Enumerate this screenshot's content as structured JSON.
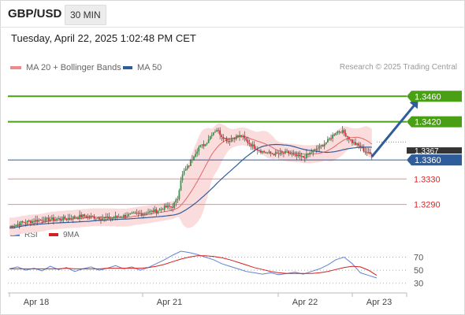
{
  "header": {
    "pair": "GBP/USD",
    "timeframe": "30 MIN",
    "datetime": "Tuesday, April 22, 2025 1:02:48 PM CET"
  },
  "legend": {
    "ma20": "MA 20 + Bollinger Bands",
    "ma50": "MA 50",
    "credit": "Research © 2025 Trading Central",
    "rsi": "RSI",
    "rsi_ma": "9MA"
  },
  "colors": {
    "up_candle": "#2e9a42",
    "down_candle": "#d9272a",
    "bollinger_fill": "#fbdcdc",
    "ma20": "#e06868",
    "ma50": "#2f5d9c",
    "resistance": "#4aa014",
    "support": "#f08a8a",
    "arrow": "#2f5d9c",
    "rsi": "#5f82d6",
    "rsi_ma": "#d42020"
  },
  "chart_data": [
    {
      "type": "candlestick",
      "title": "GBP/USD 30 MIN",
      "x_ticks": [
        "Apr 18",
        "Apr 21",
        "Apr 22",
        "Apr 23"
      ],
      "ylim": [
        1.324,
        1.35
      ],
      "levels": [
        {
          "label": "1.3460",
          "value": 1.346,
          "kind": "resistance"
        },
        {
          "label": "1.3420",
          "value": 1.342,
          "kind": "resistance"
        },
        {
          "label": "1.3360",
          "value": 1.336,
          "kind": "current"
        },
        {
          "label": "1.3330",
          "value": 1.333,
          "kind": "support"
        },
        {
          "label": "1.3290",
          "value": 1.329,
          "kind": "support"
        }
      ],
      "hidden_label_fragment": "1.3367",
      "close_path": [
        [
          0,
          1.3255
        ],
        [
          8,
          1.3262
        ],
        [
          20,
          1.3266
        ],
        [
          35,
          1.3268
        ],
        [
          45,
          1.3272
        ],
        [
          52,
          1.327
        ],
        [
          60,
          1.3268
        ],
        [
          70,
          1.3272
        ],
        [
          80,
          1.3276
        ],
        [
          90,
          1.328
        ],
        [
          95,
          1.3285
        ],
        [
          100,
          1.3287
        ],
        [
          103,
          1.33
        ],
        [
          105,
          1.333
        ],
        [
          107,
          1.3342
        ],
        [
          110,
          1.3352
        ],
        [
          113,
          1.3368
        ],
        [
          116,
          1.338
        ],
        [
          120,
          1.3385
        ],
        [
          124,
          1.3402
        ],
        [
          127,
          1.3408
        ],
        [
          130,
          1.3398
        ],
        [
          134,
          1.339
        ],
        [
          138,
          1.3396
        ],
        [
          142,
          1.3398
        ],
        [
          146,
          1.3388
        ],
        [
          150,
          1.338
        ],
        [
          155,
          1.3373
        ],
        [
          160,
          1.337
        ],
        [
          165,
          1.3369
        ],
        [
          170,
          1.3372
        ],
        [
          175,
          1.3366
        ],
        [
          180,
          1.3364
        ],
        [
          185,
          1.3372
        ],
        [
          190,
          1.338
        ],
        [
          195,
          1.339
        ],
        [
          200,
          1.3404
        ],
        [
          203,
          1.3406
        ],
        [
          206,
          1.34
        ],
        [
          210,
          1.3388
        ],
        [
          214,
          1.3382
        ],
        [
          218,
          1.3373
        ],
        [
          222,
          1.3367
        ]
      ],
      "arrow": {
        "from": [
          222,
          1.3365
        ],
        "to": [
          236,
          1.346
        ]
      },
      "series": [
        {
          "name": "MA 20 + Bollinger Bands"
        },
        {
          "name": "MA 50"
        }
      ]
    },
    {
      "type": "line",
      "title": "RSI",
      "yticks": [
        70,
        50,
        30
      ],
      "ylim": [
        20,
        85
      ],
      "series": [
        {
          "name": "RSI",
          "values": [
            52,
            55,
            50,
            53,
            49,
            56,
            51,
            54,
            48,
            52,
            55,
            50,
            53,
            57,
            52,
            55,
            50,
            54,
            60,
            66,
            73,
            79,
            77,
            74,
            70,
            66,
            60,
            56,
            52,
            48,
            46,
            44,
            46,
            43,
            45,
            47,
            44,
            48,
            52,
            58,
            66,
            70,
            60,
            46,
            42,
            38
          ]
        },
        {
          "name": "9MA",
          "values": [
            52,
            52,
            52,
            52,
            52,
            52,
            52,
            53,
            52,
            52,
            52,
            52,
            53,
            53,
            53,
            53,
            53,
            54,
            56,
            59,
            63,
            67,
            70,
            72,
            72,
            71,
            69,
            66,
            62,
            58,
            54,
            51,
            48,
            46,
            45,
            45,
            45,
            45,
            46,
            48,
            51,
            54,
            56,
            55,
            50,
            42
          ]
        }
      ]
    }
  ]
}
